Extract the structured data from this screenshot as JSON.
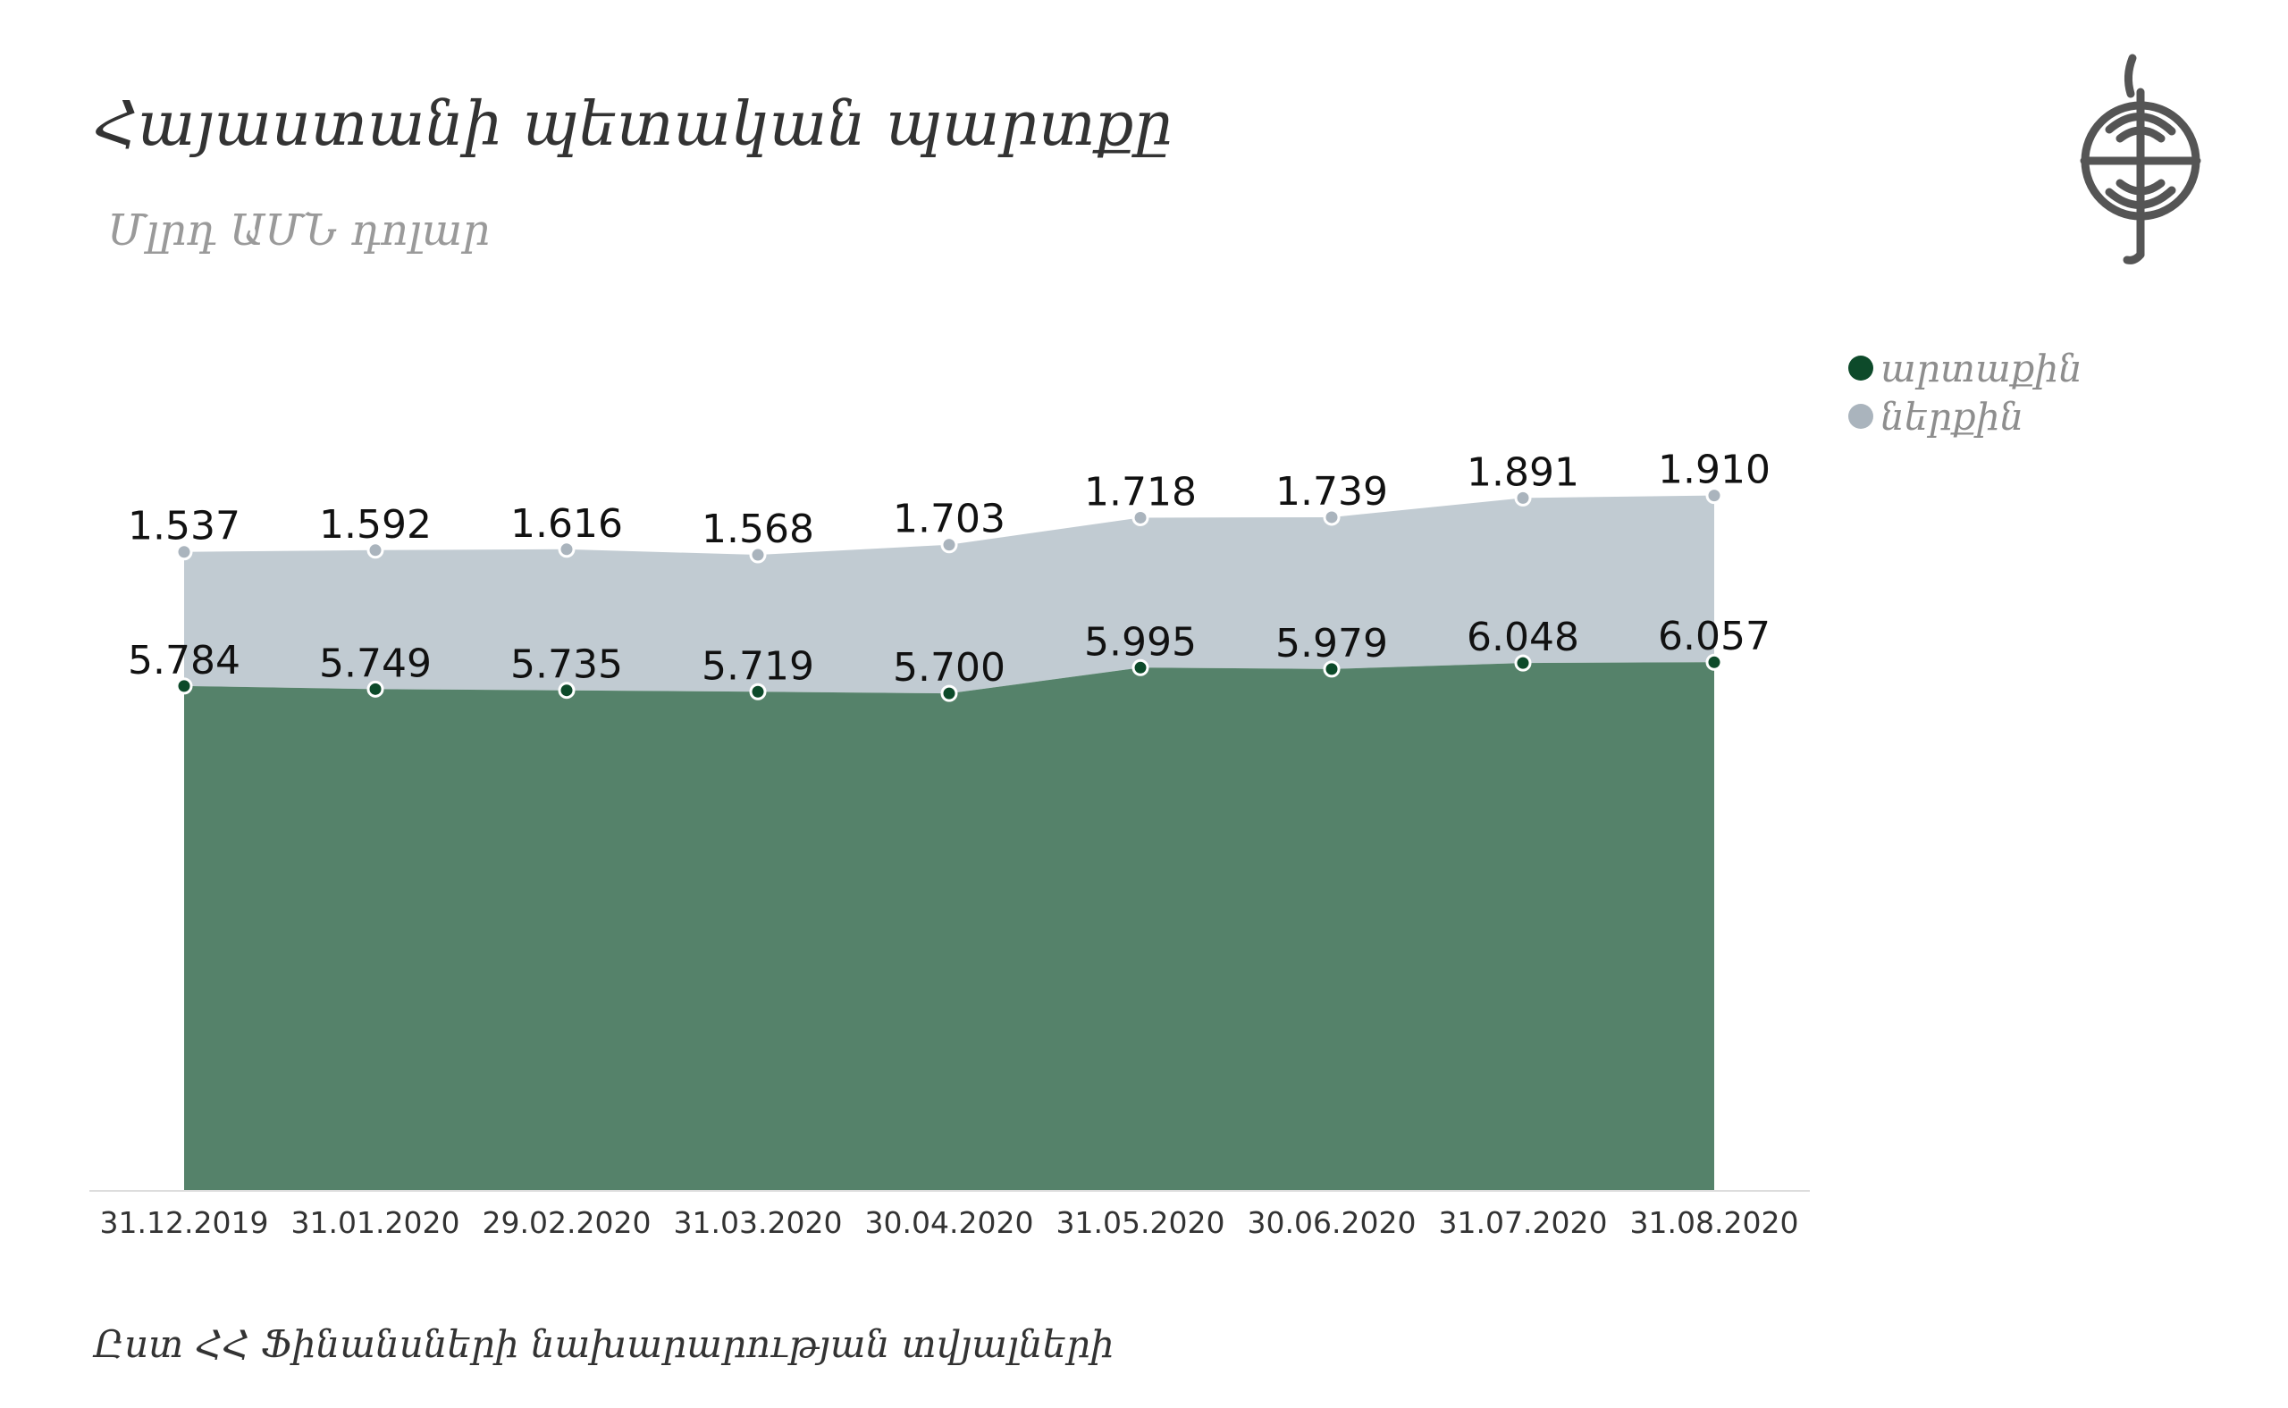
{
  "title": "Հայաստանի պետական պարտքը",
  "subtitle": "Մլրդ ԱՄՆ դոլար",
  "source": "Ըստ ՀՀ  Ֆինանսների նախարարության տվյալների",
  "legend": [
    {
      "label": "արտաքին",
      "color": "#0d4a2a"
    },
    {
      "label": "ներքին",
      "color": "#aab4bd"
    }
  ],
  "chart_data": {
    "type": "area",
    "stacked": true,
    "categories": [
      "31.12.2019",
      "31.01.2020",
      "29.02.2020",
      "31.03.2020",
      "30.04.2020",
      "31.05.2020",
      "30.06.2020",
      "31.07.2020",
      "31.08.2020"
    ],
    "series": [
      {
        "name": "արտաքին",
        "values": [
          5.784,
          5.749,
          5.735,
          5.719,
          5.7,
          5.995,
          5.979,
          6.048,
          6.057
        ],
        "labels": [
          "5.784",
          "5.749",
          "5.735",
          "5.719",
          "5.700",
          "5.995",
          "5.979",
          "6.048",
          "6.057"
        ],
        "fill": "#55826a",
        "marker": "#0d4a2a"
      },
      {
        "name": "ներքին",
        "values": [
          1.537,
          1.592,
          1.616,
          1.568,
          1.703,
          1.718,
          1.739,
          1.891,
          1.91
        ],
        "labels": [
          "1.537",
          "1.592",
          "1.616",
          "1.568",
          "1.703",
          "1.718",
          "1.739",
          "1.891",
          "1.910"
        ],
        "fill": "#c1cbd2",
        "marker": "#aab4bd"
      }
    ],
    "ylim": [
      0,
      9.2
    ],
    "grid": false,
    "legend_position": "top-right"
  }
}
